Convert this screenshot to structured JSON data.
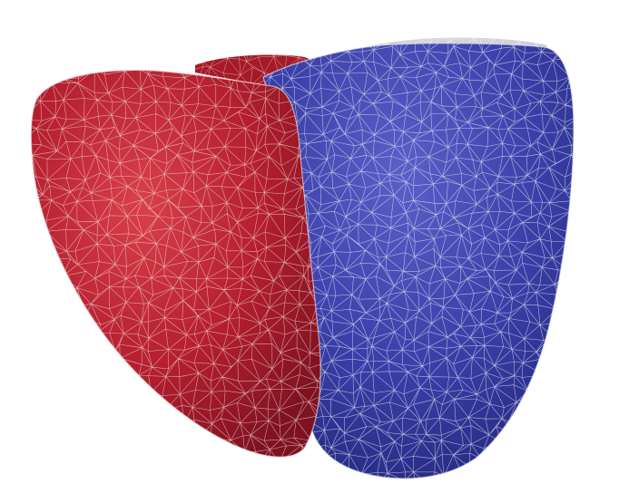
{
  "scene": {
    "background_color": "#ffffff",
    "left_chamber": {
      "fill_color": "#b51f2e",
      "fill_dark_color": "#7e1220",
      "fill_light_color": "#d9404a",
      "wire_color": "#f3d9dc"
    },
    "right_chamber": {
      "fill_color": "#3a3fa8",
      "fill_dark_color": "#23277a",
      "fill_light_color": "#5a60c8",
      "wire_color": "#dcdff5"
    },
    "cap": {
      "fill_color": "#bfc0c8",
      "wire_color": "#f0f0f4"
    }
  }
}
